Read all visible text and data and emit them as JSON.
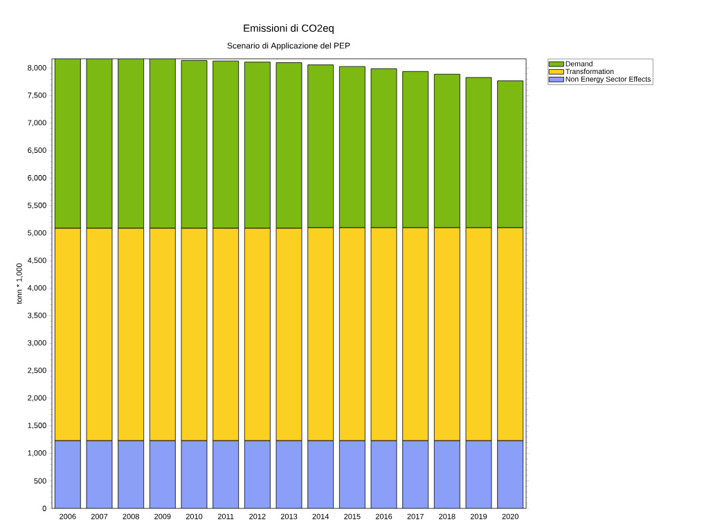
{
  "chart_data": {
    "type": "bar",
    "stacked": true,
    "title": "Emissioni di CO2eq",
    "subtitle": "Scenario di Applicazione del PEP",
    "ylabel": "tonn * 1,000",
    "categories": [
      "2006",
      "2007",
      "2008",
      "2009",
      "2010",
      "2011",
      "2012",
      "2013",
      "2014",
      "2015",
      "2016",
      "2017",
      "2018",
      "2019",
      "2020"
    ],
    "series": [
      {
        "name": "Non Energy Sector Effects",
        "color": "#8b9ef8",
        "values": [
          1230,
          1230,
          1230,
          1230,
          1230,
          1230,
          1230,
          1230,
          1230,
          1230,
          1230,
          1230,
          1230,
          1230,
          1230
        ]
      },
      {
        "name": "Transformation",
        "color": "#fcd022",
        "values": [
          3860,
          3860,
          3860,
          3860,
          3860,
          3860,
          3860,
          3860,
          3870,
          3870,
          3870,
          3870,
          3870,
          3870,
          3870
        ]
      },
      {
        "name": "Demand",
        "color": "#7cba13",
        "values": [
          3080,
          3080,
          3080,
          3080,
          3050,
          3040,
          3020,
          3010,
          2960,
          2930,
          2890,
          2840,
          2790,
          2730,
          2670
        ]
      }
    ],
    "ylim": [
      0,
      8170
    ],
    "yticks": [
      {
        "value": 0,
        "label": "0"
      },
      {
        "value": 500,
        "label": "500"
      },
      {
        "value": 1000,
        "label": "1,000"
      },
      {
        "value": 1500,
        "label": "1,500"
      },
      {
        "value": 2000,
        "label": "2,000"
      },
      {
        "value": 2500,
        "label": "2,500"
      },
      {
        "value": 3000,
        "label": "3,000"
      },
      {
        "value": 3500,
        "label": "3,500"
      },
      {
        "value": 4000,
        "label": "4,000"
      },
      {
        "value": 4500,
        "label": "4,500"
      },
      {
        "value": 5000,
        "label": "5,000"
      },
      {
        "value": 5500,
        "label": "5,500"
      },
      {
        "value": 6000,
        "label": "6,000"
      },
      {
        "value": 6500,
        "label": "6,500"
      },
      {
        "value": 7000,
        "label": "7,000"
      },
      {
        "value": 7500,
        "label": "7,500"
      },
      {
        "value": 8000,
        "label": "8,000"
      }
    ],
    "legend": "top right"
  }
}
